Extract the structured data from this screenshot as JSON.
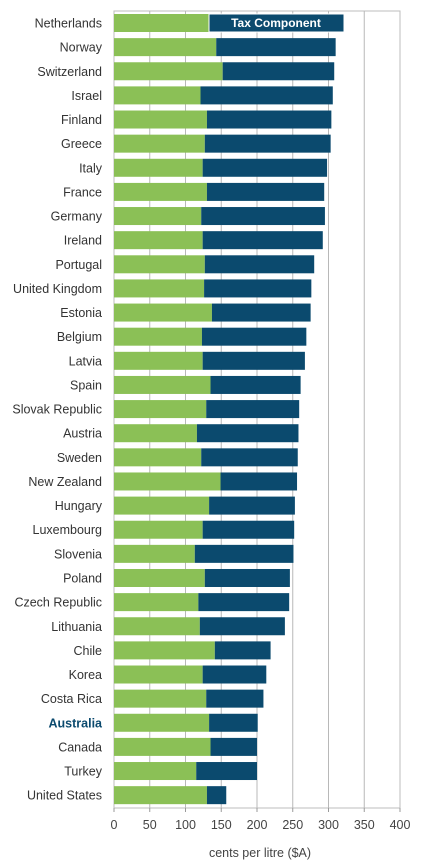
{
  "chart_data": {
    "type": "bar",
    "orientation": "horizontal",
    "stacked": true,
    "categories": [
      "Netherlands",
      "Norway",
      "Switzerland",
      "Israel",
      "Finland",
      "Greece",
      "Italy",
      "France",
      "Germany",
      "Ireland",
      "Portugal",
      "United Kingdom",
      "Estonia",
      "Belgium",
      "Latvia",
      "Spain",
      "Slovak Republic",
      "Austria",
      "Sweden",
      "New Zealand",
      "Hungary",
      "Luxembourg",
      "Slovenia",
      "Poland",
      "Czech Republic",
      "Lithuania",
      "Chile",
      "Korea",
      "Costa Rica",
      "Australia",
      "Canada",
      "Turkey",
      "United States"
    ],
    "highlight_category": "Australia",
    "series": [
      {
        "values": [
          133,
          143,
          152,
          121,
          130,
          127,
          124,
          130,
          122,
          124,
          127,
          126,
          137,
          123,
          124,
          135,
          129,
          116,
          122,
          149,
          133,
          124,
          113,
          127,
          118,
          120,
          141,
          124,
          129,
          133,
          135,
          115,
          130
        ],
        "color": "#8bc056"
      },
      {
        "name": "Tax Component",
        "values": [
          187,
          167,
          156,
          185,
          174,
          176,
          174,
          164,
          173,
          168,
          153,
          150,
          138,
          146,
          143,
          126,
          130,
          142,
          135,
          107,
          120,
          128,
          138,
          119,
          127,
          119,
          78,
          89,
          80,
          68,
          65,
          85,
          27
        ],
        "color": "#0b4a6e"
      }
    ],
    "xlabel": "cents per litre ($A)",
    "xlim": [
      0,
      400
    ],
    "xticks": [
      0,
      50,
      100,
      150,
      200,
      250,
      300,
      350,
      400
    ],
    "grid": "vertical",
    "legend": "top inside"
  }
}
